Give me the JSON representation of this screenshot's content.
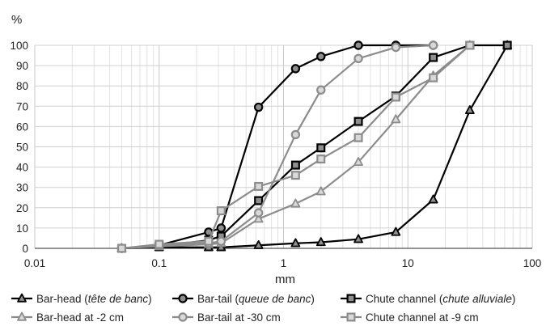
{
  "chart_data": {
    "type": "line",
    "title": "",
    "xlabel": "mm",
    "ylabel": "%",
    "x_scale": "log",
    "xlim": [
      0.01,
      100
    ],
    "ylim": [
      0,
      100
    ],
    "x_ticks": [
      "0.01",
      "0.1",
      "1",
      "10",
      "100"
    ],
    "y_ticks": [
      "0",
      "10",
      "20",
      "30",
      "40",
      "50",
      "60",
      "70",
      "80",
      "90",
      "100"
    ],
    "grid": "vertical log gridlines and horizontal gridlines every 10%",
    "legend_position": "bottom",
    "series": [
      {
        "name_parts": [
          {
            "t": "Bar-head ("
          },
          {
            "t": "tête de banc",
            "i": true
          },
          {
            "t": ")"
          }
        ],
        "color": "#000000",
        "marker": "triangle",
        "points": [
          [
            0.05,
            0
          ],
          [
            0.1,
            0.5
          ],
          [
            0.25,
            0.5
          ],
          [
            0.315,
            0.5
          ],
          [
            0.63,
            1.5
          ],
          [
            1.25,
            2.5
          ],
          [
            2,
            3
          ],
          [
            4,
            4.5
          ],
          [
            8,
            8
          ],
          [
            16,
            24
          ],
          [
            31.5,
            68
          ],
          [
            63,
            100
          ]
        ]
      },
      {
        "name_parts": [
          {
            "t": "Bar-tail ("
          },
          {
            "t": "queue de banc",
            "i": true
          },
          {
            "t": ")"
          }
        ],
        "color": "#000000",
        "marker": "circle",
        "points": [
          [
            0.05,
            0
          ],
          [
            0.1,
            1.5
          ],
          [
            0.25,
            8
          ],
          [
            0.315,
            10
          ],
          [
            0.63,
            69.5
          ],
          [
            1.25,
            88.5
          ],
          [
            2,
            94.5
          ],
          [
            4,
            100
          ],
          [
            8,
            100
          ],
          [
            16,
            100
          ]
        ]
      },
      {
        "name_parts": [
          {
            "t": "Chute channel ("
          },
          {
            "t": "chute alluviale",
            "i": true
          },
          {
            "t": ")"
          }
        ],
        "color": "#000000",
        "marker": "square",
        "points": [
          [
            0.05,
            0
          ],
          [
            0.1,
            1
          ],
          [
            0.25,
            4
          ],
          [
            0.315,
            6
          ],
          [
            0.63,
            23.5
          ],
          [
            1.25,
            41
          ],
          [
            2,
            49.5
          ],
          [
            4,
            62.5
          ],
          [
            8,
            75
          ],
          [
            16,
            94
          ],
          [
            31.5,
            100
          ],
          [
            63,
            100
          ]
        ]
      },
      {
        "name_parts": [
          {
            "t": "Bar-head at -2 cm"
          }
        ],
        "color": "#8c8c8c",
        "marker": "triangle",
        "points": [
          [
            0.05,
            0
          ],
          [
            0.1,
            1
          ],
          [
            0.25,
            2
          ],
          [
            0.315,
            2.5
          ],
          [
            0.63,
            14.5
          ],
          [
            1.25,
            22
          ],
          [
            2,
            28
          ],
          [
            4,
            42.5
          ],
          [
            8,
            63.5
          ],
          [
            16,
            85
          ],
          [
            31.5,
            100
          ]
        ]
      },
      {
        "name_parts": [
          {
            "t": "Bar-tail at -30 cm"
          }
        ],
        "color": "#8c8c8c",
        "marker": "circle",
        "points": [
          [
            0.05,
            0
          ],
          [
            0.1,
            1.5
          ],
          [
            0.25,
            2.5
          ],
          [
            0.315,
            3.5
          ],
          [
            0.63,
            17.5
          ],
          [
            1.25,
            56
          ],
          [
            2,
            78
          ],
          [
            4,
            93.5
          ],
          [
            8,
            99
          ],
          [
            16,
            100
          ]
        ]
      },
      {
        "name_parts": [
          {
            "t": "Chute channel at -9 cm"
          }
        ],
        "color": "#8c8c8c",
        "marker": "square",
        "points": [
          [
            0.05,
            0
          ],
          [
            0.1,
            2
          ],
          [
            0.25,
            3.5
          ],
          [
            0.315,
            18.5
          ],
          [
            0.63,
            30.5
          ],
          [
            1.25,
            36
          ],
          [
            2,
            44
          ],
          [
            4,
            54.5
          ],
          [
            8,
            74.5
          ],
          [
            16,
            84
          ],
          [
            31.5,
            100
          ]
        ]
      }
    ]
  }
}
